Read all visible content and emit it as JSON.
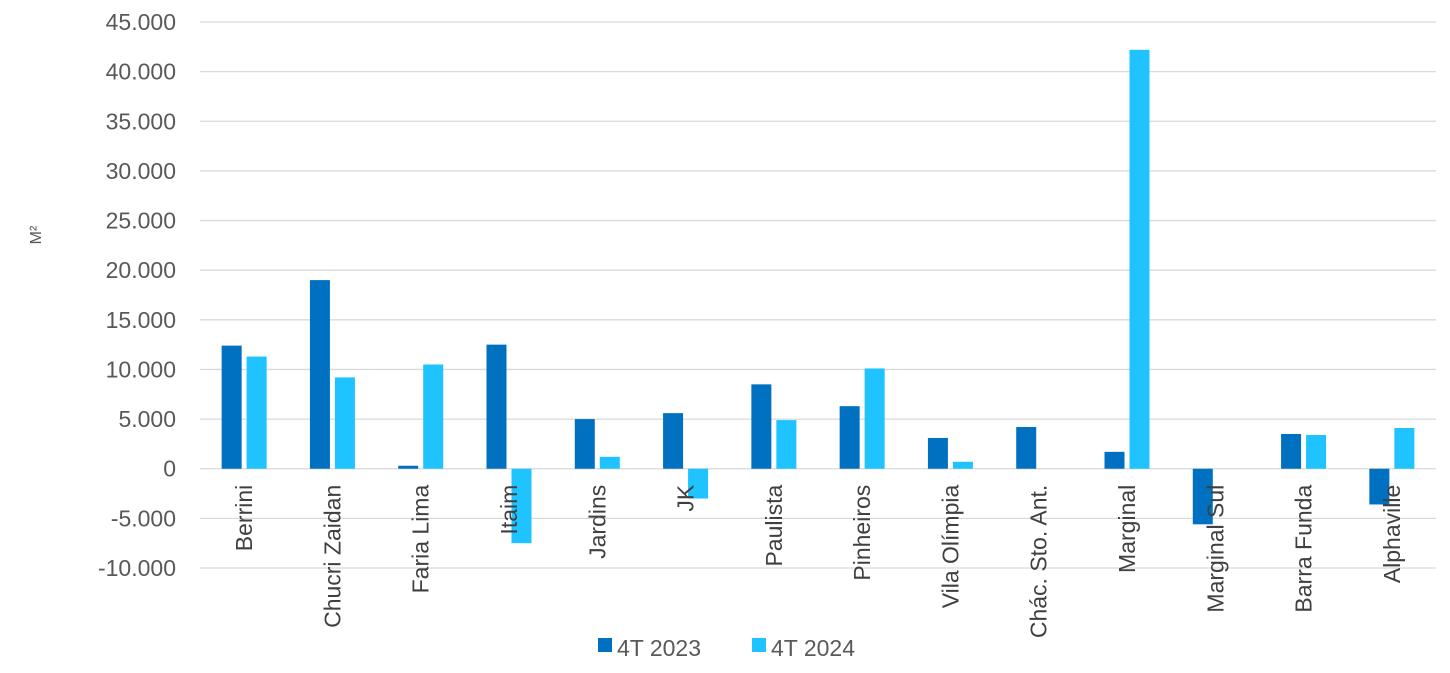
{
  "chart_data": {
    "type": "bar",
    "ylabel": "M²",
    "ylim": [
      -10000,
      45000
    ],
    "y_ticks": [
      -10000,
      -5000,
      0,
      5000,
      10000,
      15000,
      20000,
      25000,
      30000,
      35000,
      40000,
      45000
    ],
    "y_tick_labels": [
      "-10.000",
      "-5.000",
      "0",
      "5.000",
      "10.000",
      "15.000",
      "20.000",
      "25.000",
      "30.000",
      "35.000",
      "40.000",
      "45.000"
    ],
    "grid": "horizontal",
    "legend_position": "bottom",
    "categories": [
      "Berrini",
      "Chucri Zaidan",
      "Faria Lima",
      "Itaim",
      "Jardins",
      "JK",
      "Paulista",
      "Pinheiros",
      "Vila Olímpia",
      "Chác. Sto. Ant.",
      "Marginal",
      "Marginal Sul",
      "Barra Funda",
      "Alphaville"
    ],
    "series": [
      {
        "name": "4T 2023",
        "color": "#0070C0",
        "values": [
          12400,
          19000,
          300,
          12500,
          5000,
          5600,
          8500,
          6300,
          3100,
          4200,
          1700,
          -5600,
          3500,
          -3600
        ]
      },
      {
        "name": "4T 2024",
        "color": "#1FC3FF",
        "values": [
          11300,
          9200,
          10500,
          -7500,
          1200,
          -3000,
          4900,
          10100,
          700,
          0,
          42200,
          0,
          3400,
          4100
        ]
      }
    ]
  }
}
